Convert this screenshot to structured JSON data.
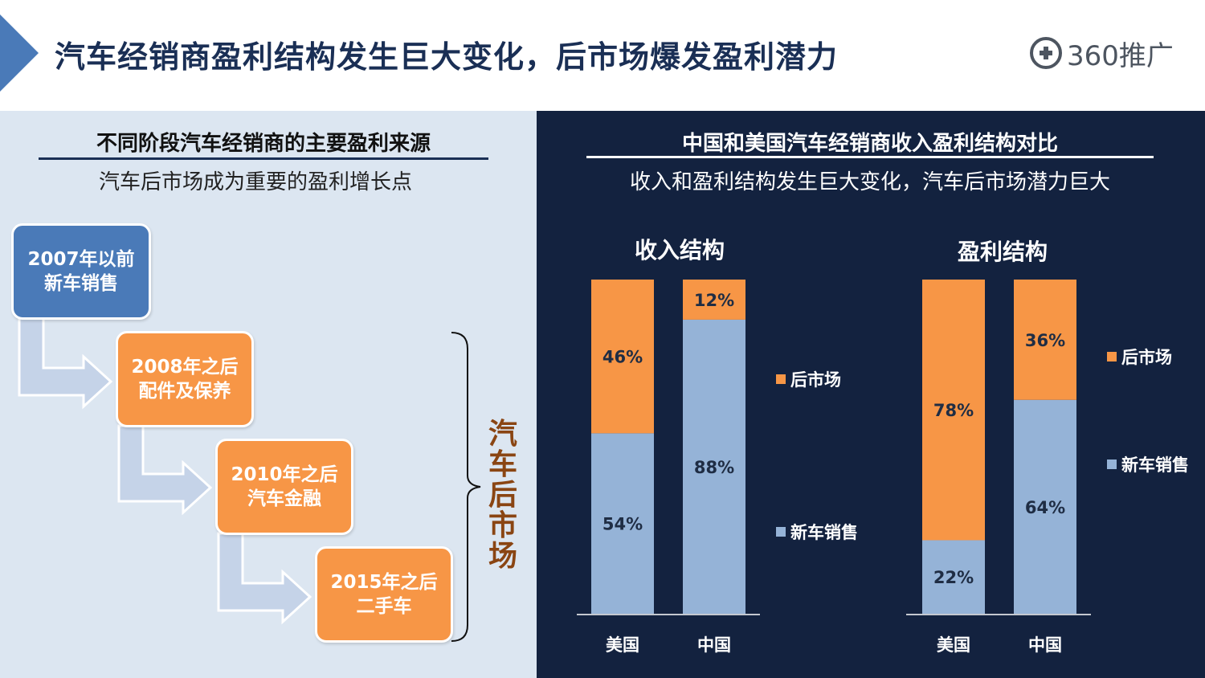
{
  "header": {
    "title": "汽车经销商盈利结构发生巨大变化，后市场爆发盈利潜力",
    "logo_text": "360推广"
  },
  "left": {
    "heading": "不同阶段汽车经销商的主要盈利来源",
    "subheading": "汽车后市场成为重要的盈利增长点",
    "stages": [
      {
        "line1": "2007年以前",
        "line2": "新车销售"
      },
      {
        "line1": "2008年之后",
        "line2": "配件及保养"
      },
      {
        "line1": "2010年之后",
        "line2": "汽车金融"
      },
      {
        "line1": "2015年之后",
        "line2": "二手车"
      }
    ],
    "bracket_label": "汽车后市场"
  },
  "right": {
    "heading": "中国和美国汽车经销商收入盈利结构对比",
    "subheading": "收入和盈利结构发生巨大变化，汽车后市场潜力巨大"
  },
  "colors": {
    "new_car": "#95b3d7",
    "aftermarket": "#f79646",
    "panel_dark": "#13223f",
    "panel_light": "#dce6f1",
    "stage_blue": "#4a7ab8",
    "accent_brown": "#8a4513"
  },
  "chart_data": [
    {
      "type": "bar",
      "stacked": true,
      "title": "收入结构",
      "categories": [
        "美国",
        "中国"
      ],
      "series": [
        {
          "name": "新车销售",
          "values": [
            54,
            88
          ],
          "labels": [
            "54%",
            "88%"
          ]
        },
        {
          "name": "后市场",
          "values": [
            46,
            12
          ],
          "labels": [
            "46%",
            "12%"
          ]
        }
      ],
      "ylim": [
        0,
        100
      ],
      "legend": "right"
    },
    {
      "type": "bar",
      "stacked": true,
      "title": "盈利结构",
      "categories": [
        "美国",
        "中国"
      ],
      "series": [
        {
          "name": "新车销售",
          "values": [
            22,
            64
          ],
          "labels": [
            "22%",
            "64%"
          ]
        },
        {
          "name": "后市场",
          "values": [
            78,
            36
          ],
          "labels": [
            "78%",
            "36%"
          ]
        }
      ],
      "ylim": [
        0,
        100
      ],
      "legend": "right"
    }
  ]
}
